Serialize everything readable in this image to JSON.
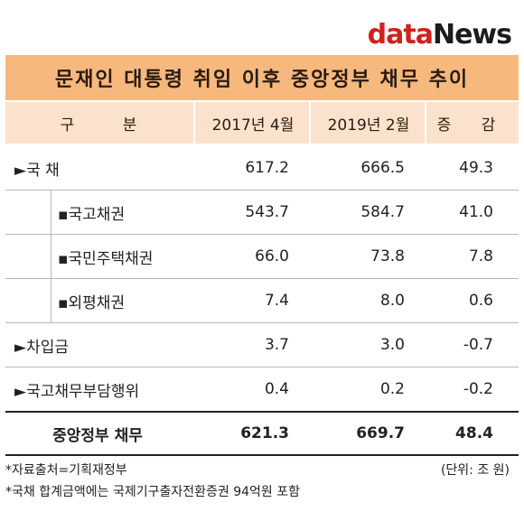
{
  "logo": {
    "part1": "data",
    "part2": "News"
  },
  "title": "문재인 대통령 취임 이후 중앙정부 채무 추이",
  "headers": {
    "category": "구 분",
    "col1": "2017년 4월",
    "col2": "2019년 2월",
    "col3": "증 감"
  },
  "rows": [
    {
      "label": "►국 채",
      "v1": "617.2",
      "v2": "666.5",
      "v3": "49.3",
      "kind": "top"
    },
    {
      "label": "▪국고채권",
      "v1": "543.7",
      "v2": "584.7",
      "v3": "41.0",
      "kind": "sub"
    },
    {
      "label": "▪국민주택채권",
      "v1": "66.0",
      "v2": "73.8",
      "v3": "7.8",
      "kind": "sub"
    },
    {
      "label": "▪외평채권",
      "v1": "7.4",
      "v2": "8.0",
      "v3": "0.6",
      "kind": "sub"
    },
    {
      "label": "►차입금",
      "v1": "3.7",
      "v2": "3.0",
      "v3": "-0.7",
      "kind": "top"
    },
    {
      "label": "►국고채무부담행위",
      "v1": "0.4",
      "v2": "0.2",
      "v3": "-0.2",
      "kind": "top"
    }
  ],
  "total": {
    "label": "중앙정부 채무",
    "v1": "621.3",
    "v2": "669.7",
    "v3": "48.4"
  },
  "notes": {
    "source": "*자료출처=기획재정부",
    "unit": "(단위: 조 원)",
    "footnote": "*국채 합계금액에는 국제기구출자전환증권 94억원 포함"
  },
  "colors": {
    "title_bg": "#f7b87e",
    "header_bg": "#fbe2cd",
    "logo_red": "#d0211c"
  }
}
